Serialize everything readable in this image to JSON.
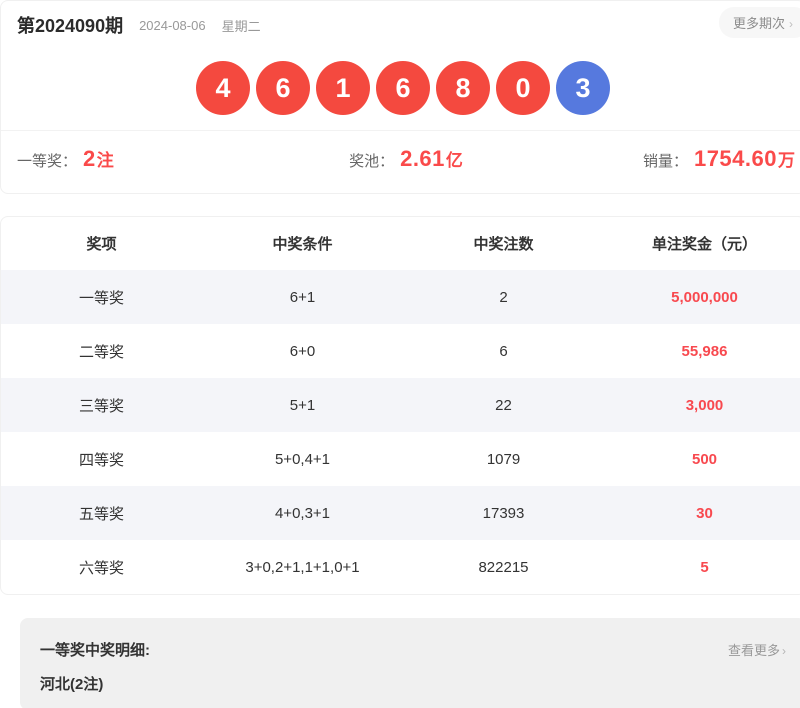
{
  "header": {
    "issue": "第2024090期",
    "date": "2024-08-06",
    "weekday": "星期二",
    "more_label": "更多期次",
    "more_arrow": "›"
  },
  "balls": [
    {
      "value": "4",
      "type": "red"
    },
    {
      "value": "6",
      "type": "red"
    },
    {
      "value": "1",
      "type": "red"
    },
    {
      "value": "6",
      "type": "red"
    },
    {
      "value": "8",
      "type": "red"
    },
    {
      "value": "0",
      "type": "red"
    },
    {
      "value": "3",
      "type": "blue"
    }
  ],
  "stats": [
    {
      "label": "一等奖：",
      "number": "2",
      "unit": "注"
    },
    {
      "label": "奖池：",
      "number": "2.61",
      "unit": "亿"
    },
    {
      "label": "销量：",
      "number": "1754.60",
      "unit": "万"
    }
  ],
  "colors": {
    "ball_red": "#f4493f",
    "ball_blue": "#5679de",
    "accent_red_text": "#fa4a4a",
    "stripe_row": "#f4f5f9",
    "details_bg": "#f0f0f0"
  },
  "table": {
    "headers": [
      "奖项",
      "中奖条件",
      "中奖注数",
      "单注奖金（元）"
    ],
    "rows": [
      [
        "一等奖",
        "6+1",
        "2",
        "5,000,000"
      ],
      [
        "二等奖",
        "6+0",
        "6",
        "55,986"
      ],
      [
        "三等奖",
        "5+1",
        "22",
        "3,000"
      ],
      [
        "四等奖",
        "5+0,4+1",
        "1079",
        "500"
      ],
      [
        "五等奖",
        "4+0,3+1",
        "17393",
        "30"
      ],
      [
        "六等奖",
        "3+0,2+1,1+1,0+1",
        "822215",
        "5"
      ]
    ]
  },
  "details": {
    "title": "一等奖中奖明细:",
    "more_label": "查看更多",
    "more_arrow": "›",
    "winners": "河北(2注)"
  }
}
